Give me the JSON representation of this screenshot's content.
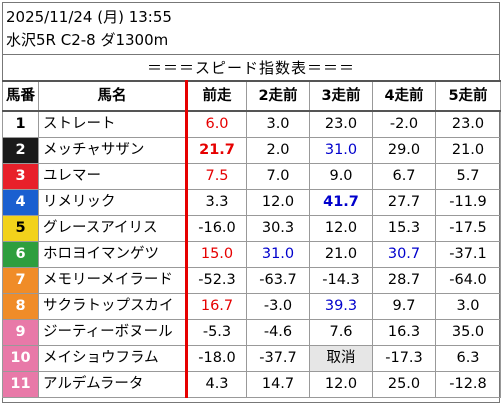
{
  "header": {
    "datetime": "2025/11/24 (月) 13:55",
    "race": "水沢5R C2-8 ダ1300m",
    "title": "＝＝＝スピード指数表＝＝＝"
  },
  "table": {
    "columns": [
      "馬番",
      "馬名",
      "前走",
      "2走前",
      "3走前",
      "4走前",
      "5走前"
    ],
    "rows": [
      {
        "num": "1",
        "name": "ストレート",
        "vals": [
          "6.0",
          "3.0",
          "23.0",
          "-2.0",
          "23.0"
        ]
      },
      {
        "num": "2",
        "name": "メッチャサザン",
        "vals": [
          "21.7",
          "2.0",
          "31.0",
          "29.0",
          "21.0"
        ]
      },
      {
        "num": "3",
        "name": "ユレマー",
        "vals": [
          "7.5",
          "7.0",
          "9.0",
          "6.7",
          "5.7"
        ]
      },
      {
        "num": "4",
        "name": "リメリック",
        "vals": [
          "3.3",
          "12.0",
          "41.7",
          "27.7",
          "-11.9"
        ]
      },
      {
        "num": "5",
        "name": "グレースアイリス",
        "vals": [
          "-16.0",
          "30.3",
          "12.0",
          "15.3",
          "-17.5"
        ]
      },
      {
        "num": "6",
        "name": "ホロヨイマンゲツ",
        "vals": [
          "15.0",
          "31.0",
          "21.0",
          "30.7",
          "-37.1"
        ]
      },
      {
        "num": "7",
        "name": "メモリーメイラード",
        "vals": [
          "-52.3",
          "-63.7",
          "-14.3",
          "28.7",
          "-64.0"
        ]
      },
      {
        "num": "8",
        "name": "サクラトップスカイ",
        "vals": [
          "16.7",
          "-3.0",
          "39.3",
          "9.7",
          "3.0"
        ]
      },
      {
        "num": "9",
        "name": "ジーティーボヌール",
        "vals": [
          "-5.3",
          "-4.6",
          "7.6",
          "16.3",
          "35.0"
        ]
      },
      {
        "num": "10",
        "name": "メイショウフラム",
        "vals": [
          "-18.0",
          "-37.7",
          "取消",
          "-17.3",
          "6.3"
        ]
      },
      {
        "num": "11",
        "name": "アルデムラータ",
        "vals": [
          "4.3",
          "14.7",
          "12.0",
          "25.0",
          "-12.8"
        ]
      }
    ]
  },
  "colors": {
    "frame_colors": [
      "#ffffff",
      "#1a1a1a",
      "#e8202a",
      "#1a5fd0",
      "#f2d21b",
      "#2e9e3e",
      "#f08c28",
      "#f08c28",
      "#e879a8",
      "#e879a8",
      "#e879a8"
    ],
    "frame_text": [
      "#000000",
      "#ffffff",
      "#ffffff",
      "#ffffff",
      "#000000",
      "#ffffff",
      "#ffffff",
      "#ffffff",
      "#ffffff",
      "#ffffff",
      "#ffffff"
    ],
    "red": "#e60000",
    "blue": "#0000cc"
  }
}
